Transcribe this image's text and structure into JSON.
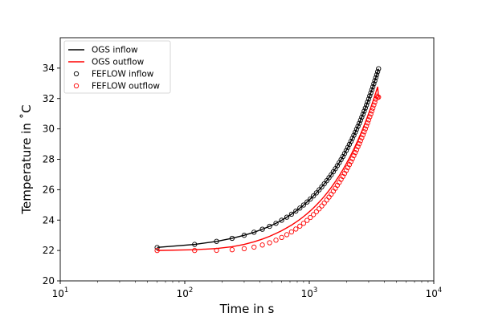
{
  "chart_data": {
    "type": "line",
    "xscale": "log",
    "xlim": [
      10,
      10000
    ],
    "ylim": [
      20,
      36
    ],
    "xlabel": "Time in s",
    "ylabel": "Temperature in ˚C",
    "xticks": [
      {
        "value": 10,
        "base": "10",
        "exp": "1"
      },
      {
        "value": 100,
        "base": "10",
        "exp": "2"
      },
      {
        "value": 1000,
        "base": "10",
        "exp": "3"
      },
      {
        "value": 10000,
        "base": "10",
        "exp": "4"
      }
    ],
    "yticks": [
      20,
      22,
      24,
      26,
      28,
      30,
      32,
      34
    ],
    "grid": false,
    "legend_position": "top-left",
    "series": [
      {
        "name": "OGS inflow",
        "kind": "line",
        "color": "#000000",
        "x": [
          60,
          120,
          180,
          240,
          300,
          360,
          420,
          480,
          540,
          600,
          660,
          720,
          780,
          840,
          900,
          960,
          1020,
          1080,
          1140,
          1200,
          1260,
          1320,
          1380,
          1440,
          1500,
          1560,
          1620,
          1680,
          1740,
          1800,
          1860,
          1920,
          1980,
          2040,
          2100,
          2160,
          2220,
          2280,
          2340,
          2400,
          2460,
          2520,
          2580,
          2640,
          2700,
          2760,
          2820,
          2880,
          2940,
          3000,
          3060,
          3120,
          3180,
          3240,
          3300,
          3360,
          3420,
          3480,
          3540,
          3600
        ],
        "y": [
          22.2,
          22.4,
          22.6,
          22.8,
          23.0,
          23.2,
          23.4,
          23.59,
          23.79,
          23.99,
          24.19,
          24.39,
          24.59,
          24.79,
          24.99,
          25.19,
          25.39,
          25.59,
          25.79,
          25.99,
          26.19,
          26.39,
          26.59,
          26.79,
          26.98,
          27.18,
          27.38,
          27.58,
          27.78,
          27.98,
          28.18,
          28.38,
          28.58,
          28.78,
          28.98,
          29.18,
          29.38,
          29.58,
          29.78,
          29.98,
          30.17,
          30.37,
          30.57,
          30.77,
          30.97,
          31.17,
          31.37,
          31.57,
          31.77,
          31.97,
          32.17,
          32.37,
          32.57,
          32.77,
          32.97,
          33.17,
          33.37,
          33.56,
          33.76,
          33.96
        ]
      },
      {
        "name": "OGS outflow",
        "kind": "line",
        "color": "#ff0000",
        "x": [
          60,
          120,
          180,
          240,
          300,
          360,
          420,
          480,
          540,
          600,
          660,
          720,
          780,
          840,
          900,
          960,
          1020,
          1080,
          1140,
          1200,
          1260,
          1320,
          1380,
          1440,
          1500,
          1560,
          1620,
          1680,
          1740,
          1800,
          1860,
          1920,
          1980,
          2040,
          2100,
          2160,
          2220,
          2280,
          2340,
          2400,
          2460,
          2520,
          2580,
          2640,
          2700,
          2760,
          2820,
          2880,
          2940,
          3000,
          3060,
          3120,
          3180,
          3240,
          3300,
          3360,
          3420,
          3480,
          3540,
          3600
        ],
        "y": [
          22.0,
          22.05,
          22.13,
          22.25,
          22.4,
          22.57,
          22.75,
          22.93,
          23.12,
          23.3,
          23.49,
          23.67,
          23.86,
          24.04,
          24.23,
          24.42,
          24.61,
          24.8,
          24.99,
          25.18,
          25.37,
          25.56,
          25.76,
          25.95,
          26.14,
          26.34,
          26.53,
          26.73,
          26.92,
          27.12,
          27.31,
          27.51,
          27.7,
          27.9,
          28.09,
          28.29,
          28.48,
          28.68,
          28.87,
          29.07,
          29.26,
          29.46,
          29.65,
          29.85,
          30.04,
          30.24,
          30.43,
          30.63,
          30.82,
          31.02,
          31.21,
          31.41,
          31.6,
          31.8,
          31.99,
          32.19,
          32.38,
          32.58,
          32.77,
          32.09
        ]
      },
      {
        "name": "FEFLOW inflow",
        "kind": "scatter",
        "color": "#000000",
        "x": [
          60,
          120,
          180,
          240,
          300,
          360,
          420,
          480,
          540,
          600,
          660,
          720,
          780,
          840,
          900,
          960,
          1020,
          1080,
          1140,
          1200,
          1260,
          1320,
          1380,
          1440,
          1500,
          1560,
          1620,
          1680,
          1740,
          1800,
          1860,
          1920,
          1980,
          2040,
          2100,
          2160,
          2220,
          2280,
          2340,
          2400,
          2460,
          2520,
          2580,
          2640,
          2700,
          2760,
          2820,
          2880,
          2940,
          3000,
          3060,
          3120,
          3180,
          3240,
          3300,
          3360,
          3420,
          3480,
          3540,
          3600
        ],
        "y": [
          22.2,
          22.4,
          22.6,
          22.8,
          23.0,
          23.2,
          23.4,
          23.59,
          23.79,
          23.99,
          24.19,
          24.39,
          24.59,
          24.79,
          24.99,
          25.19,
          25.39,
          25.59,
          25.79,
          25.99,
          26.19,
          26.39,
          26.59,
          26.79,
          26.98,
          27.18,
          27.38,
          27.58,
          27.78,
          27.98,
          28.18,
          28.38,
          28.58,
          28.78,
          28.98,
          29.18,
          29.38,
          29.58,
          29.78,
          29.98,
          30.17,
          30.37,
          30.57,
          30.77,
          30.97,
          31.17,
          31.37,
          31.57,
          31.77,
          31.97,
          32.17,
          32.37,
          32.57,
          32.77,
          32.97,
          33.17,
          33.37,
          33.56,
          33.76,
          33.96
        ]
      },
      {
        "name": "FEFLOW outflow",
        "kind": "scatter",
        "color": "#ff0000",
        "x": [
          60,
          120,
          180,
          240,
          300,
          360,
          420,
          480,
          540,
          600,
          660,
          720,
          780,
          840,
          900,
          960,
          1020,
          1080,
          1140,
          1200,
          1260,
          1320,
          1380,
          1440,
          1500,
          1560,
          1620,
          1680,
          1740,
          1800,
          1860,
          1920,
          1980,
          2040,
          2100,
          2160,
          2220,
          2280,
          2340,
          2400,
          2460,
          2520,
          2580,
          2640,
          2700,
          2760,
          2820,
          2880,
          2940,
          3000,
          3060,
          3120,
          3180,
          3240,
          3300,
          3360,
          3420,
          3480,
          3540,
          3600
        ],
        "y": [
          22.0,
          22.0,
          22.01,
          22.05,
          22.12,
          22.22,
          22.36,
          22.51,
          22.68,
          22.86,
          23.04,
          23.22,
          23.41,
          23.6,
          23.79,
          23.98,
          24.17,
          24.36,
          24.55,
          24.74,
          24.93,
          25.12,
          25.32,
          25.51,
          25.7,
          25.9,
          26.09,
          26.29,
          26.48,
          26.68,
          26.87,
          27.07,
          27.26,
          27.46,
          27.65,
          27.85,
          28.04,
          28.24,
          28.44,
          28.63,
          28.83,
          29.02,
          29.22,
          29.41,
          29.61,
          29.81,
          30.0,
          30.2,
          30.39,
          30.59,
          30.79,
          30.98,
          31.18,
          31.37,
          31.57,
          31.76,
          31.96,
          32.16,
          32.09,
          32.09
        ]
      }
    ]
  }
}
